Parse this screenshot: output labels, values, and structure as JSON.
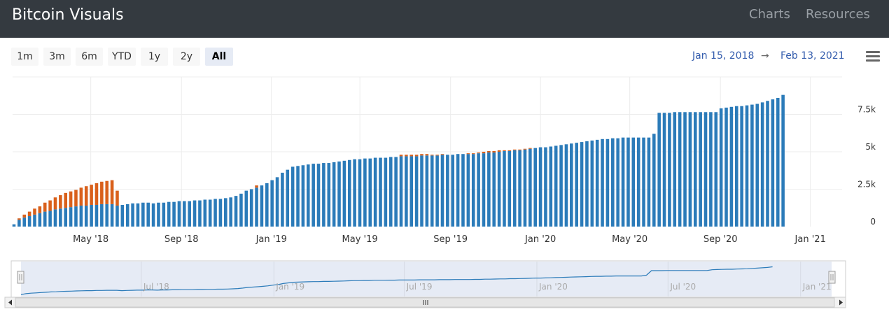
{
  "header": {
    "title": "Bitcoin Visuals",
    "nav": [
      "Charts",
      "Resources"
    ]
  },
  "range_selector": {
    "buttons": [
      "1m",
      "3m",
      "6m",
      "YTD",
      "1y",
      "2y",
      "All"
    ],
    "active": "All",
    "from": "Jan 15, 2018",
    "arrow": "→",
    "to": "Feb 13, 2021"
  },
  "icons": {
    "menu": "hamburger-menu-icon",
    "nav_left": "arrow-left-icon",
    "nav_right": "arrow-right-icon",
    "scroll_grip": "scrollbar-grip-icon"
  },
  "colors": {
    "series_blue": "#2b7bb9",
    "series_orange": "#d9601b",
    "navigator_fill": "#e6ebf5",
    "navigator_line": "#2b7bb9"
  },
  "chart_data": {
    "type": "bar",
    "stacked": true,
    "x_axis": {
      "type": "date",
      "range": [
        "2018-01-15",
        "2021-02-13"
      ],
      "tick_labels": [
        "May '18",
        "Sep '18",
        "Jan '19",
        "May '19",
        "Sep '19",
        "Jan '20",
        "May '20",
        "Sep '20",
        "Jan '21"
      ]
    },
    "y_axis": {
      "min": 0,
      "max": 10000,
      "position": "right",
      "tick_labels": [
        "0",
        "2.5k",
        "5k",
        "7.5k"
      ],
      "tick_values": [
        0,
        2500,
        5000,
        7500
      ]
    },
    "grid": true,
    "legend": false,
    "bar_interval_days": 7,
    "series": [
      {
        "color": "#2b7bb9",
        "values": [
          150,
          450,
          600,
          700,
          800,
          900,
          1000,
          1050,
          1150,
          1200,
          1250,
          1300,
          1350,
          1400,
          1400,
          1450,
          1450,
          1500,
          1500,
          1500,
          1400,
          1450,
          1500,
          1550,
          1550,
          1600,
          1600,
          1550,
          1600,
          1600,
          1650,
          1650,
          1700,
          1700,
          1700,
          1750,
          1750,
          1800,
          1800,
          1850,
          1850,
          1900,
          1950,
          2050,
          2200,
          2400,
          2500,
          2600,
          2750,
          2900,
          3100,
          3300,
          3600,
          3800,
          4000,
          4050,
          4100,
          4150,
          4200,
          4200,
          4250,
          4250,
          4300,
          4350,
          4400,
          4450,
          4500,
          4500,
          4550,
          4550,
          4600,
          4600,
          4600,
          4650,
          4650,
          4700,
          4700,
          4700,
          4700,
          4750,
          4750,
          4750,
          4750,
          4800,
          4800,
          4800,
          4850,
          4850,
          4850,
          4850,
          4900,
          4900,
          4950,
          4950,
          5000,
          5050,
          5050,
          5100,
          5100,
          5150,
          5200,
          5250,
          5300,
          5300,
          5350,
          5400,
          5450,
          5500,
          5550,
          5600,
          5650,
          5700,
          5750,
          5800,
          5850,
          5850,
          5900,
          5900,
          5950,
          5950,
          5950,
          5950,
          5950,
          5950,
          6200,
          7600,
          7600,
          7600,
          7650,
          7650,
          7650,
          7650,
          7650,
          7650,
          7650,
          7650,
          7650,
          7900,
          7950,
          8000,
          8050,
          8050,
          8100,
          8150,
          8200,
          8300,
          8400,
          8500,
          8600,
          8800
        ]
      },
      {
        "color": "#d9601b",
        "values": [
          0,
          100,
          200,
          300,
          400,
          450,
          600,
          700,
          800,
          900,
          1000,
          1050,
          1100,
          1200,
          1300,
          1350,
          1450,
          1500,
          1550,
          1600,
          1000,
          0,
          0,
          0,
          0,
          0,
          0,
          0,
          0,
          0,
          0,
          0,
          0,
          0,
          0,
          0,
          0,
          0,
          0,
          0,
          0,
          0,
          0,
          0,
          0,
          0,
          0,
          150,
          0,
          0,
          0,
          0,
          0,
          0,
          0,
          0,
          0,
          0,
          0,
          0,
          0,
          0,
          0,
          0,
          0,
          0,
          0,
          0,
          0,
          0,
          0,
          0,
          0,
          0,
          0,
          100,
          100,
          100,
          100,
          100,
          100,
          50,
          50,
          50,
          0,
          0,
          0,
          0,
          50,
          50,
          50,
          100,
          100,
          100,
          100,
          50,
          50,
          50,
          50,
          50,
          50,
          0,
          0,
          0,
          0,
          0,
          0,
          0,
          0,
          0,
          0,
          0,
          0,
          0,
          0,
          0,
          0,
          0,
          0,
          0,
          0,
          0,
          0,
          0,
          0,
          0,
          0,
          0,
          0,
          0,
          0,
          0,
          0,
          0,
          0,
          0,
          0,
          0,
          0,
          0,
          0,
          0,
          0,
          0,
          0,
          0,
          0,
          0,
          0,
          0,
          0,
          0,
          0,
          0
        ]
      }
    ],
    "navigator": {
      "tick_labels": [
        "Jul '18",
        "Jan '19",
        "Jul '19",
        "Jan '20",
        "Jul '20",
        "Jan '21"
      ],
      "grip": "III"
    }
  }
}
